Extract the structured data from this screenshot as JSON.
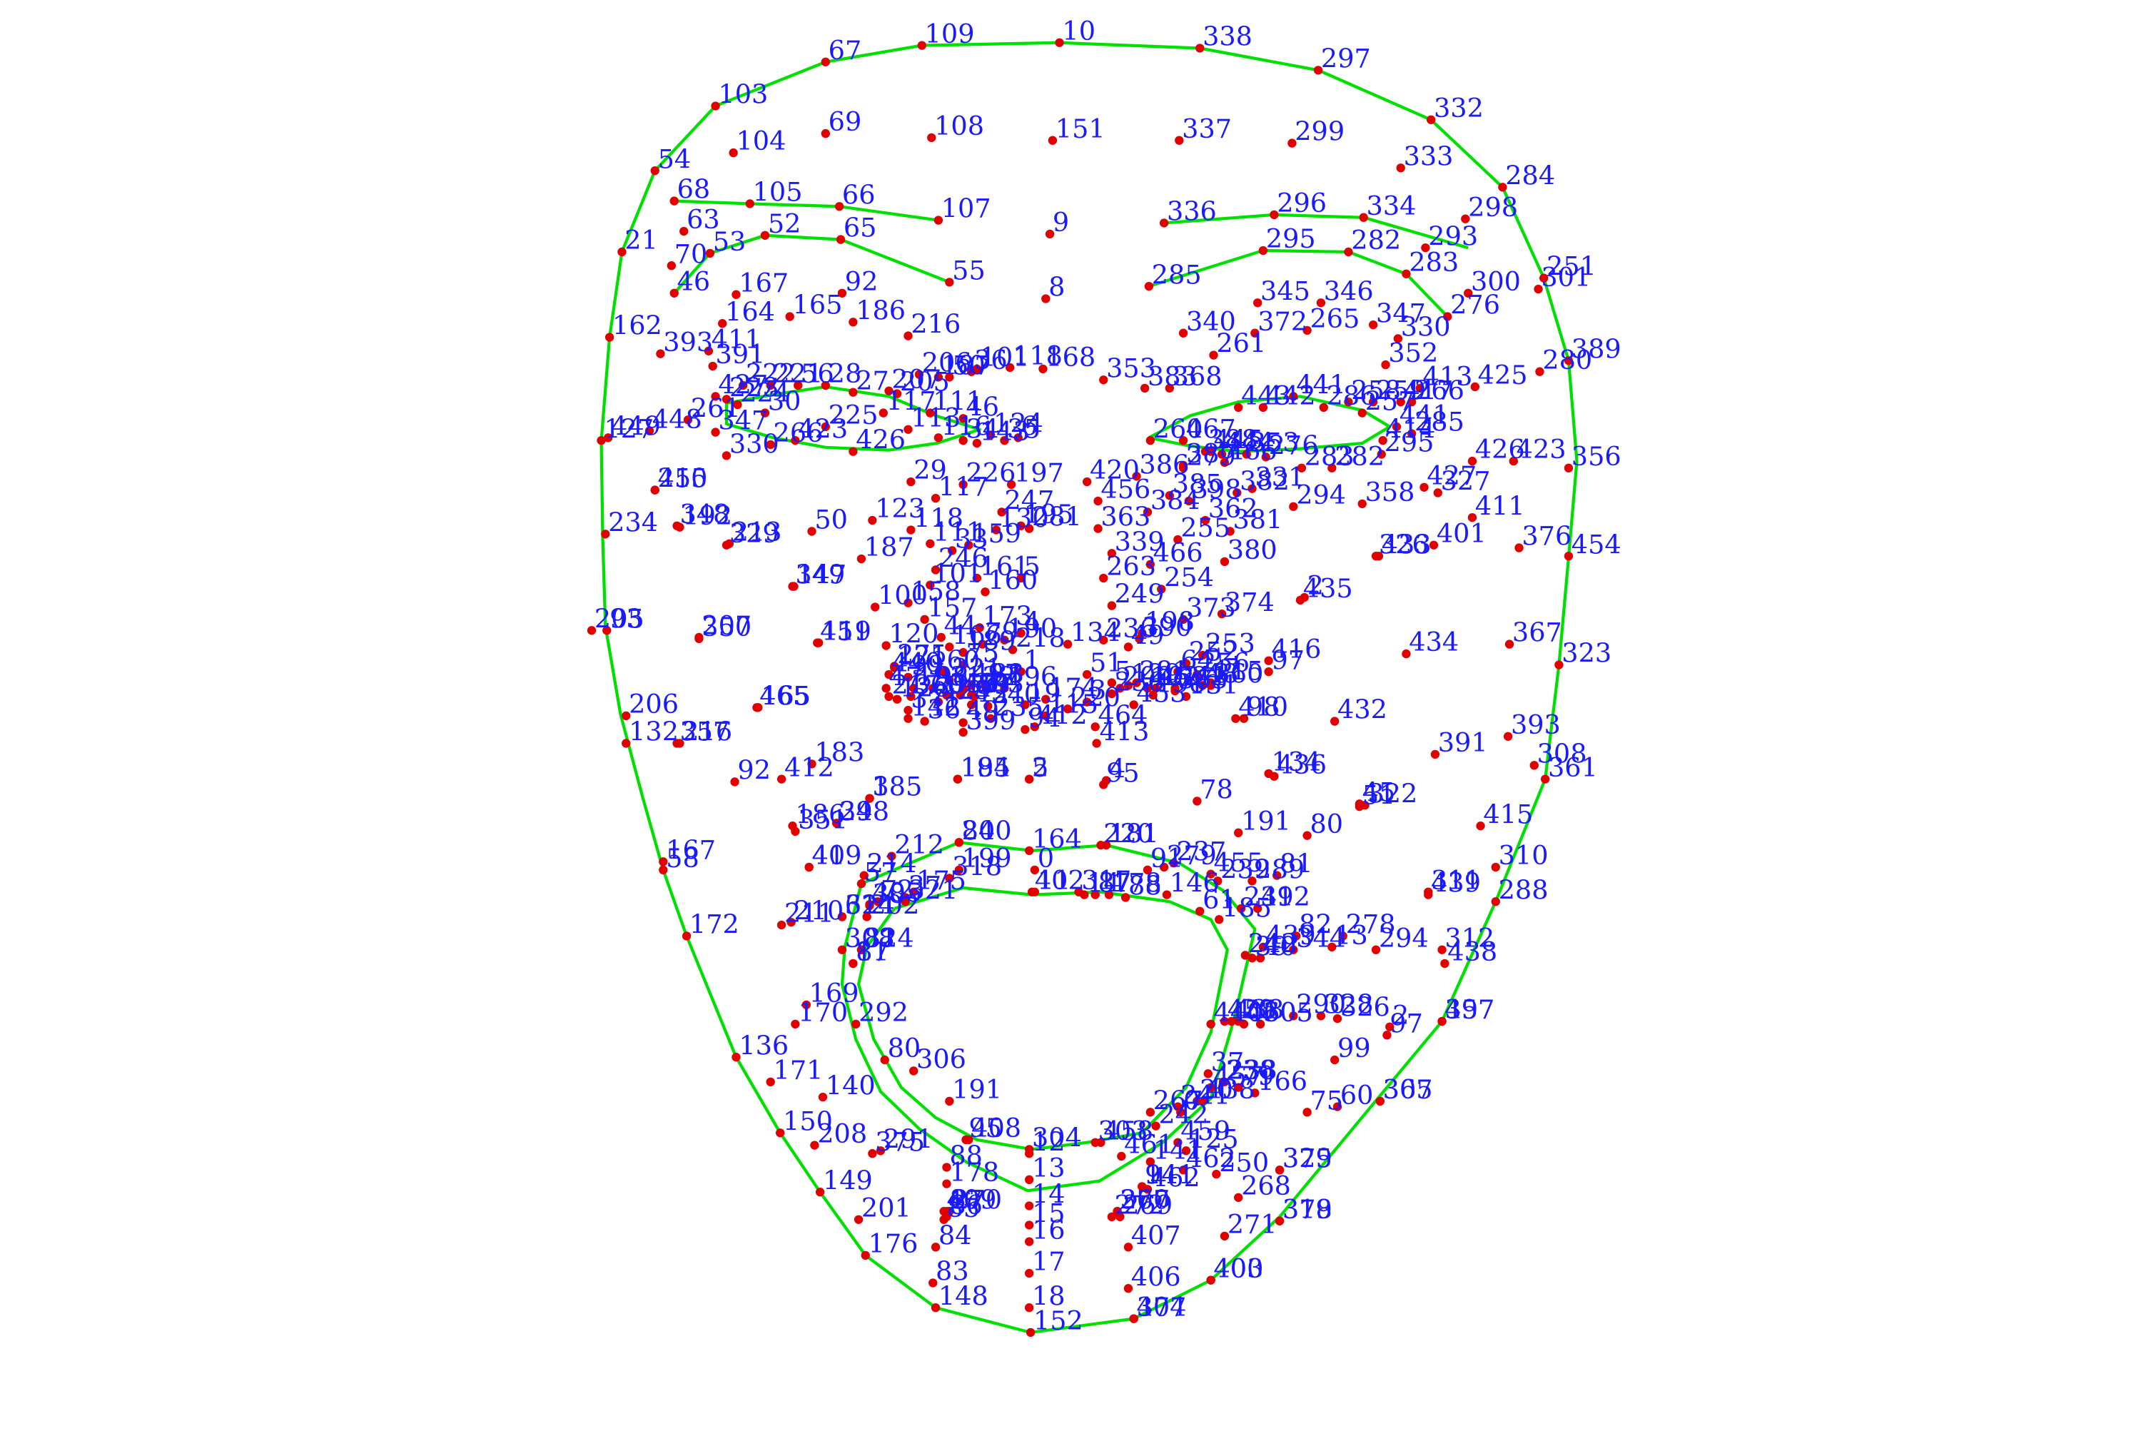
{
  "colors": {
    "background": "#ffffff",
    "contour": "#00e000",
    "point": "#e00000",
    "label": "#1a1aff"
  },
  "labels": [
    "10",
    "338",
    "297",
    "332",
    "284",
    "251",
    "389",
    "356",
    "454",
    "323",
    "361",
    "288",
    "397",
    "365",
    "379",
    "378",
    "400",
    "377",
    "152",
    "148",
    "176",
    "149",
    "150",
    "136",
    "172",
    "58",
    "132",
    "93",
    "234",
    "127",
    "162",
    "21",
    "54",
    "103",
    "67",
    "109",
    "107",
    "66",
    "105",
    "63",
    "70",
    "65",
    "52",
    "53",
    "46",
    "55",
    "336",
    "296",
    "334",
    "293",
    "300",
    "276",
    "283",
    "282",
    "295",
    "285",
    "151",
    "108",
    "69",
    "104",
    "68",
    "337",
    "299",
    "333",
    "298",
    "301",
    "9",
    "8",
    "168",
    "6",
    "197",
    "195",
    "5",
    "4",
    "1",
    "19",
    "94",
    "2",
    "164",
    "0",
    "11",
    "12",
    "13",
    "14",
    "15",
    "16",
    "17",
    "18",
    "200",
    "199",
    "175",
    "37",
    "72",
    "38",
    "82",
    "81",
    "80",
    "191",
    "95",
    "88",
    "178",
    "87",
    "86",
    "85",
    "84",
    "83",
    "201",
    "208",
    "171",
    "140",
    "170",
    "169",
    "211",
    "210",
    "202",
    "214",
    "212",
    "57",
    "61",
    "40",
    "39",
    "185",
    "184",
    "183",
    "186",
    "92",
    "165",
    "167",
    "206",
    "216",
    "207",
    "205",
    "192",
    "213",
    "215",
    "147",
    "187",
    "50",
    "123",
    "117",
    "118",
    "111",
    "101",
    "100",
    "119",
    "120",
    "121",
    "47",
    "217",
    "126",
    "142",
    "36",
    "49",
    "203",
    "98",
    "97",
    "99",
    "60",
    "75",
    "240",
    "235",
    "59",
    "166",
    "79",
    "218",
    "115",
    "220",
    "45",
    "44",
    "220",
    "237",
    "239",
    "241",
    "242",
    "20",
    "238",
    "125",
    "141",
    "267",
    "269",
    "270",
    "409",
    "291",
    "375",
    "321",
    "405",
    "314",
    "17",
    "84",
    "181",
    "91",
    "146",
    "61",
    "185",
    "40",
    "39",
    "37",
    "0",
    "267",
    "303",
    "304",
    "408",
    "306",
    "292",
    "308",
    "324",
    "318",
    "402",
    "317",
    "14",
    "87",
    "178",
    "88",
    "95",
    "78",
    "191",
    "80",
    "81",
    "82",
    "13",
    "312",
    "311",
    "310",
    "415",
    "308",
    "393",
    "391",
    "322",
    "436",
    "410",
    "432",
    "434",
    "367",
    "416",
    "435",
    "433",
    "401",
    "376",
    "411",
    "427",
    "426",
    "423",
    "425",
    "280",
    "352",
    "266",
    "330",
    "347",
    "346",
    "345",
    "340",
    "261",
    "372",
    "265",
    "353",
    "383",
    "368",
    "260",
    "467",
    "445",
    "444",
    "443",
    "442",
    "441",
    "286",
    "258",
    "257",
    "259",
    "417",
    "413",
    "414",
    "441",
    "285",
    "295",
    "282",
    "283",
    "276",
    "353",
    "466",
    "388",
    "387",
    "386",
    "385",
    "384",
    "398",
    "362",
    "382",
    "381",
    "380",
    "374",
    "373",
    "390",
    "249",
    "263",
    "466",
    "255",
    "339",
    "254",
    "253",
    "252",
    "256",
    "341",
    "452",
    "453",
    "464",
    "413",
    "412",
    "399",
    "437",
    "355",
    "429",
    "371",
    "360",
    "440",
    "275",
    "281",
    "363",
    "456",
    "420",
    "279",
    "331",
    "294",
    "358",
    "327",
    "326",
    "2",
    "97",
    "98",
    "134",
    "51",
    "45",
    "4",
    "5",
    "195",
    "3",
    "248",
    "419",
    "351",
    "412",
    "465",
    "357",
    "350",
    "451",
    "349",
    "329",
    "348",
    "450",
    "449",
    "448",
    "261",
    "347",
    "330",
    "266",
    "423",
    "426",
    "427",
    "411",
    "391",
    "393",
    "164",
    "167",
    "165",
    "92",
    "186",
    "216",
    "206",
    "207",
    "205",
    "187",
    "50",
    "36",
    "101",
    "118",
    "117",
    "111",
    "116",
    "34",
    "143",
    "35",
    "124",
    "46",
    "113",
    "225",
    "30",
    "224",
    "223",
    "222",
    "221",
    "56",
    "28",
    "27",
    "29",
    "226",
    "247",
    "130",
    "33",
    "246",
    "161",
    "160",
    "159",
    "158",
    "157",
    "173",
    "190",
    "189",
    "221",
    "193",
    "122",
    "188",
    "196",
    "174",
    "3",
    "236",
    "198",
    "131",
    "115",
    "48",
    "64",
    "102",
    "129",
    "209",
    "49",
    "198",
    "236",
    "134",
    "51",
    "5",
    "281",
    "363",
    "360",
    "279",
    "455",
    "289",
    "392",
    "439",
    "438",
    "457",
    "438",
    "459",
    "458",
    "461",
    "462",
    "250",
    "462",
    "370",
    "94",
    "141",
    "242",
    "241",
    "20",
    "238",
    "79",
    "166",
    "75",
    "60",
    "99",
    "97",
    "2",
    "326",
    "328",
    "290",
    "305",
    "460",
    "455",
    "440",
    "344",
    "278",
    "294",
    "439",
    "438",
    "457",
    "307",
    "325",
    "319",
    "403",
    "404",
    "406",
    "407",
    "272",
    "271",
    "268",
    "302",
    "12",
    "38",
    "41",
    "42",
    "43",
    "106",
    "204",
    "194",
    "32",
    "140",
    "171",
    "396",
    "428",
    "262",
    "431",
    "395",
    "369",
    "430",
    "364",
    "394",
    "287",
    "273",
    "335",
    "434",
    "424",
    "422",
    "418",
    "420",
    "428",
    "199",
    "200",
    "421",
    "313",
    "406",
    "396",
    "369",
    "378",
    "400",
    "377",
    "152"
  ],
  "note_text": ""
}
